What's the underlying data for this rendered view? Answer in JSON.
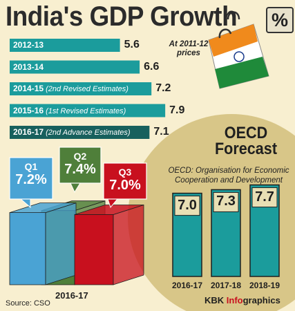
{
  "header": {
    "title": "India's GDP Growth",
    "percent_symbol": "%",
    "price_note": "At 2011-12 prices"
  },
  "colors": {
    "annual_bar": "#1b9c9c",
    "advance_bar": "#17605d",
    "q1": "#4aa3d4",
    "q2": "#4f7f3a",
    "q3": "#c8101e",
    "oecd_bar": "#1b9c9c",
    "circle": "#d8c688"
  },
  "chart_data": [
    {
      "type": "bar",
      "orientation": "horizontal",
      "title": "India's GDP Growth",
      "categories": [
        "2012-13",
        "2013-14",
        "2014-15",
        "2015-16",
        "2016-17"
      ],
      "category_notes": [
        "",
        "",
        "(2nd Revised Estimates)",
        "(1st Revised Estimates)",
        "(2nd Advance Estimates)"
      ],
      "values": [
        5.6,
        6.6,
        7.2,
        7.9,
        7.1
      ],
      "value_labels": [
        "5.6",
        "6.6",
        "7.2",
        "7.9",
        "7.1"
      ],
      "annotation": "At 2011-12 prices"
    },
    {
      "type": "bar",
      "categories": [
        "Q1",
        "Q2",
        "Q3"
      ],
      "values": [
        7.2,
        7.4,
        7.0
      ],
      "value_labels": [
        "7.2%",
        "7.4%",
        "7.0%"
      ],
      "xlabel": "2016-17"
    },
    {
      "type": "bar",
      "title": "OECD Forecast",
      "subtitle": "OECD: Organisation for Economic Cooperation and Development",
      "categories": [
        "2016-17",
        "2017-18",
        "2018-19"
      ],
      "values": [
        7.0,
        7.3,
        7.7
      ],
      "value_labels": [
        "7.0",
        "7.3",
        "7.7"
      ]
    }
  ],
  "oecd": {
    "title_line1": "OECD",
    "title_line2": "Forecast",
    "subtitle": "OECD: Organisation for Economic Cooperation and Development"
  },
  "footer": {
    "source": "Source: CSO",
    "brand_prefix": "KBK ",
    "brand_highlight": "Info",
    "brand_suffix": "graphics"
  }
}
